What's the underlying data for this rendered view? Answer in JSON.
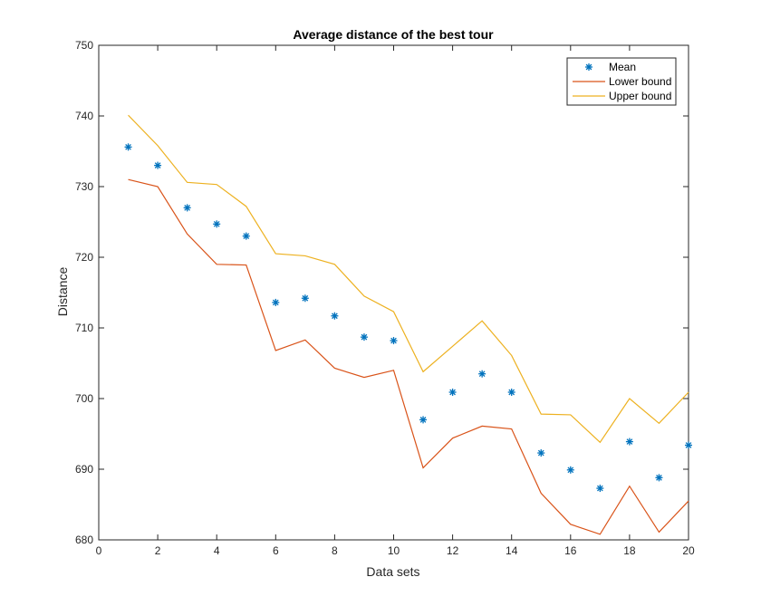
{
  "chart_data": {
    "type": "line",
    "title": "Average distance of the best tour",
    "xlabel": "Data sets",
    "ylabel": "Distance",
    "xlim": [
      0,
      20
    ],
    "ylim": [
      680,
      750
    ],
    "xticks": [
      0,
      2,
      4,
      6,
      8,
      10,
      12,
      14,
      16,
      18,
      20
    ],
    "yticks": [
      680,
      690,
      700,
      710,
      720,
      730,
      740,
      750
    ],
    "grid": false,
    "legend_position": "top-right",
    "x": [
      1,
      2,
      3,
      4,
      5,
      6,
      7,
      8,
      9,
      10,
      11,
      12,
      13,
      14,
      15,
      16,
      17,
      18,
      19,
      20
    ],
    "series": [
      {
        "name": "Mean",
        "kind": "marker",
        "marker": "*",
        "color": "#0072BD",
        "values": [
          735.6,
          733.0,
          727.0,
          724.7,
          723.0,
          713.6,
          714.2,
          711.7,
          708.7,
          708.2,
          697.0,
          700.9,
          703.5,
          700.9,
          692.3,
          689.9,
          687.3,
          693.9,
          688.8,
          693.4
        ]
      },
      {
        "name": "Lower bound",
        "kind": "line",
        "color": "#D95319",
        "values": [
          731.0,
          730.0,
          723.3,
          719.0,
          718.9,
          706.8,
          708.3,
          704.3,
          703.0,
          704.0,
          690.2,
          694.4,
          696.1,
          695.7,
          686.6,
          682.2,
          680.8,
          687.6,
          681.1,
          685.5
        ]
      },
      {
        "name": "Upper bound",
        "kind": "line",
        "color": "#EDB120",
        "values": [
          740.1,
          735.8,
          730.6,
          730.3,
          727.2,
          720.5,
          720.2,
          719.0,
          714.5,
          712.3,
          703.8,
          707.4,
          711.0,
          706.1,
          697.8,
          697.7,
          693.8,
          700.0,
          696.5,
          700.9
        ]
      }
    ]
  }
}
